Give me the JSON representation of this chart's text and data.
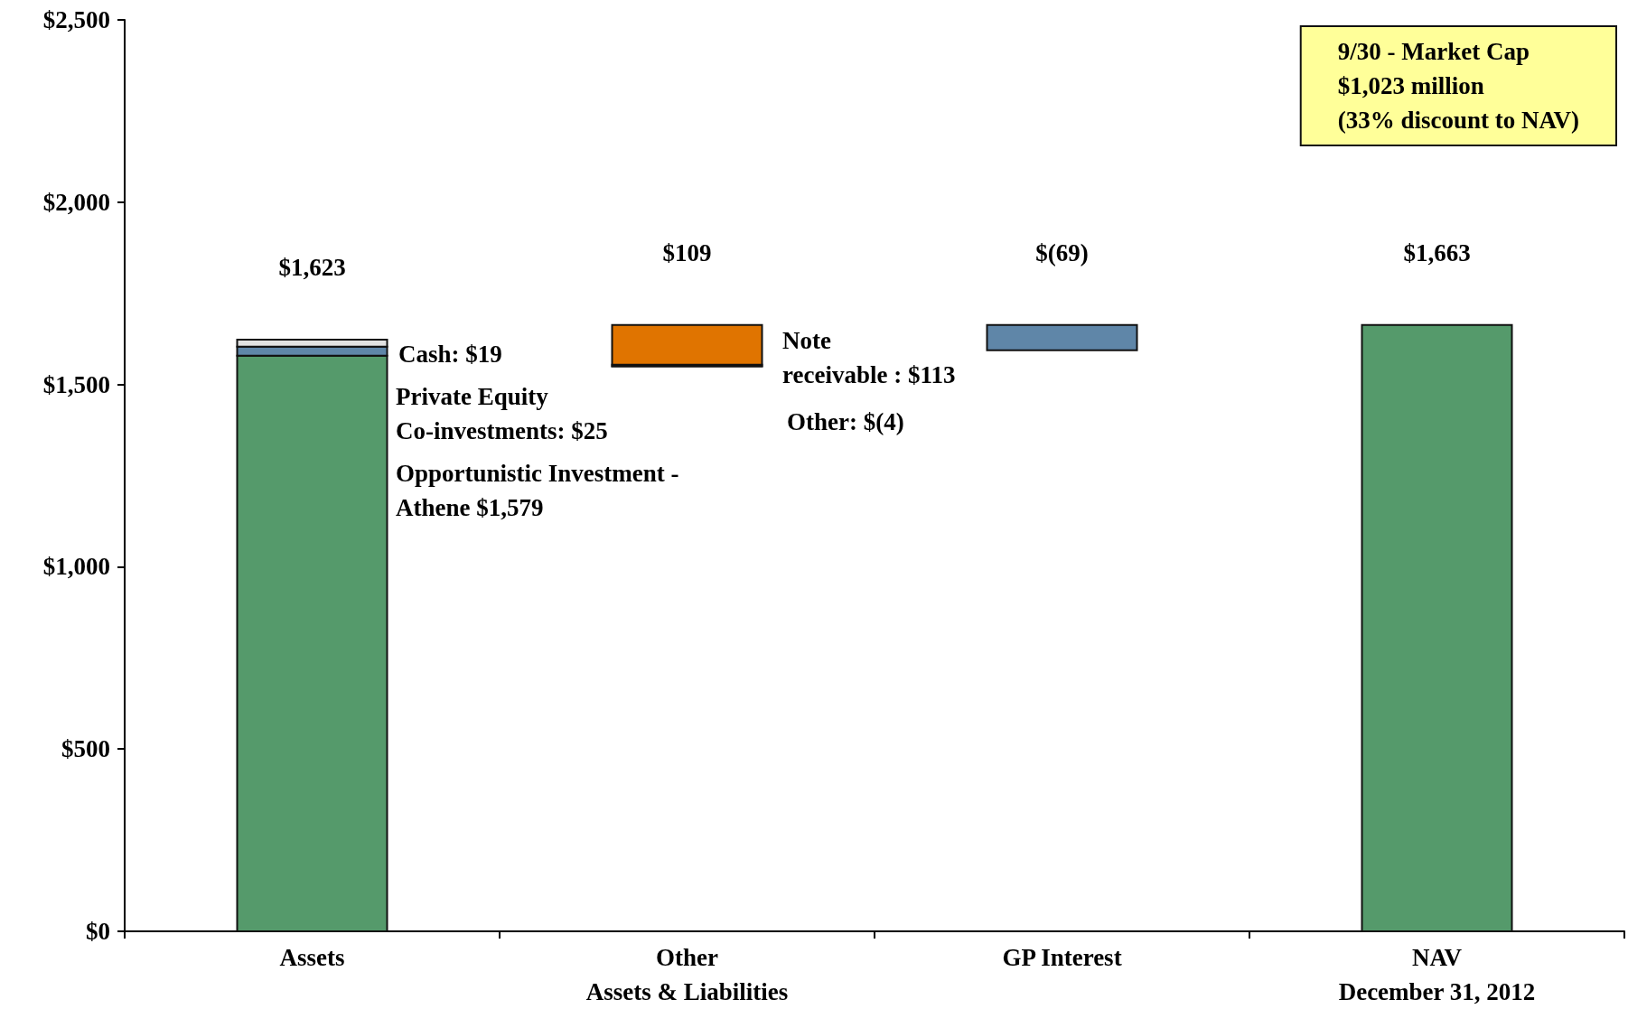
{
  "chart_data": {
    "type": "bar",
    "categories": [
      "Assets",
      "Other\nAssets & Liabilities",
      "GP Interest",
      "NAV\nDecember 31, 2012"
    ],
    "series": [
      {
        "color": "#559a6b",
        "values": [
          1579,
          null,
          null,
          1663
        ],
        "base": [
          0,
          null,
          null,
          0
        ]
      },
      {
        "color": "#5f86a8",
        "values": [
          25,
          null,
          -69,
          null
        ],
        "base": [
          1579,
          null,
          1663,
          null
        ]
      },
      {
        "color": "#e2e2e2",
        "values": [
          19,
          null,
          null,
          null
        ],
        "base": [
          1604,
          null,
          null,
          null
        ]
      },
      {
        "color": "#e07400",
        "values": [
          null,
          113,
          null,
          null
        ],
        "base": [
          null,
          1550,
          null,
          null
        ]
      },
      {
        "color": "#1a1a1a",
        "values": [
          null,
          -4,
          null,
          null
        ],
        "base": [
          null,
          1554,
          null,
          null
        ]
      }
    ],
    "totals": [
      "$1,623",
      "$109",
      "$(69)",
      "$1,663"
    ],
    "ylim": [
      0,
      2500
    ],
    "yticks": [
      {
        "value": 0,
        "label": "$0"
      },
      {
        "value": 500,
        "label": "$500"
      },
      {
        "value": 1000,
        "label": "$1,000"
      },
      {
        "value": 1500,
        "label": "$1,500"
      },
      {
        "value": 2000,
        "label": "$2,000"
      },
      {
        "value": 2500,
        "label": "$2,500"
      }
    ],
    "grid": false,
    "annotations": [
      "Cash: $19",
      "Private Equity\nCo-investments: $25",
      "Opportunistic Investment -\nAthene $1,579",
      "Note\nreceivable : $113",
      "Other: $(4)",
      "9/30 - Market Cap\n$1,023 million\n(33% discount to NAV)"
    ]
  }
}
